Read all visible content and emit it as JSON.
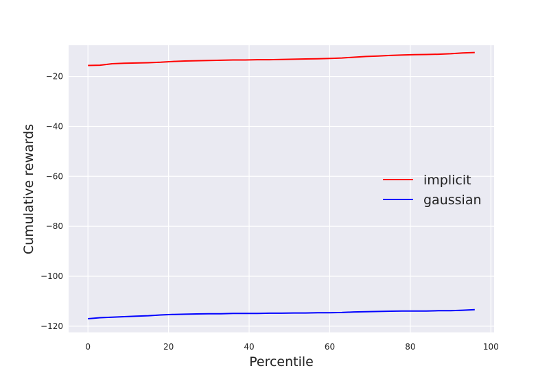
{
  "chart_data": {
    "type": "line",
    "xlabel": "Percentile",
    "ylabel": "Cumulative rewards",
    "xlim": [
      -4.8,
      100.8
    ],
    "ylim": [
      -122.5,
      -7.5
    ],
    "xticks": [
      0,
      20,
      40,
      60,
      80,
      100
    ],
    "xtick_labels": [
      "0",
      "20",
      "40",
      "60",
      "80",
      "100"
    ],
    "yticks": [
      -120,
      -100,
      -80,
      -60,
      -40,
      -20
    ],
    "ytick_labels": [
      "−120",
      "−100",
      "−80",
      "−60",
      "−40",
      "−20"
    ],
    "grid": true,
    "legend_position": "center-right",
    "x": [
      0,
      3,
      6,
      9,
      12,
      15,
      18,
      21,
      24,
      27,
      30,
      33,
      36,
      39,
      42,
      45,
      48,
      51,
      54,
      57,
      60,
      63,
      66,
      69,
      72,
      75,
      78,
      81,
      84,
      87,
      90,
      93,
      96
    ],
    "series": [
      {
        "name": "implicit",
        "color": "#ff0000",
        "values": [
          -15.6,
          -15.5,
          -14.9,
          -14.7,
          -14.6,
          -14.5,
          -14.3,
          -14.0,
          -13.8,
          -13.7,
          -13.6,
          -13.5,
          -13.4,
          -13.4,
          -13.3,
          -13.3,
          -13.2,
          -13.1,
          -13.0,
          -12.9,
          -12.8,
          -12.6,
          -12.3,
          -12.0,
          -11.8,
          -11.6,
          -11.4,
          -11.3,
          -11.2,
          -11.1,
          -10.9,
          -10.6,
          -10.4
        ]
      },
      {
        "name": "gaussian",
        "color": "#0000ff",
        "values": [
          -117.0,
          -116.6,
          -116.4,
          -116.2,
          -116.0,
          -115.8,
          -115.5,
          -115.3,
          -115.2,
          -115.1,
          -115.0,
          -115.0,
          -114.9,
          -114.9,
          -114.9,
          -114.8,
          -114.8,
          -114.7,
          -114.7,
          -114.6,
          -114.6,
          -114.5,
          -114.3,
          -114.2,
          -114.1,
          -114.0,
          -113.9,
          -113.9,
          -113.9,
          -113.8,
          -113.8,
          -113.6,
          -113.4
        ]
      }
    ]
  }
}
